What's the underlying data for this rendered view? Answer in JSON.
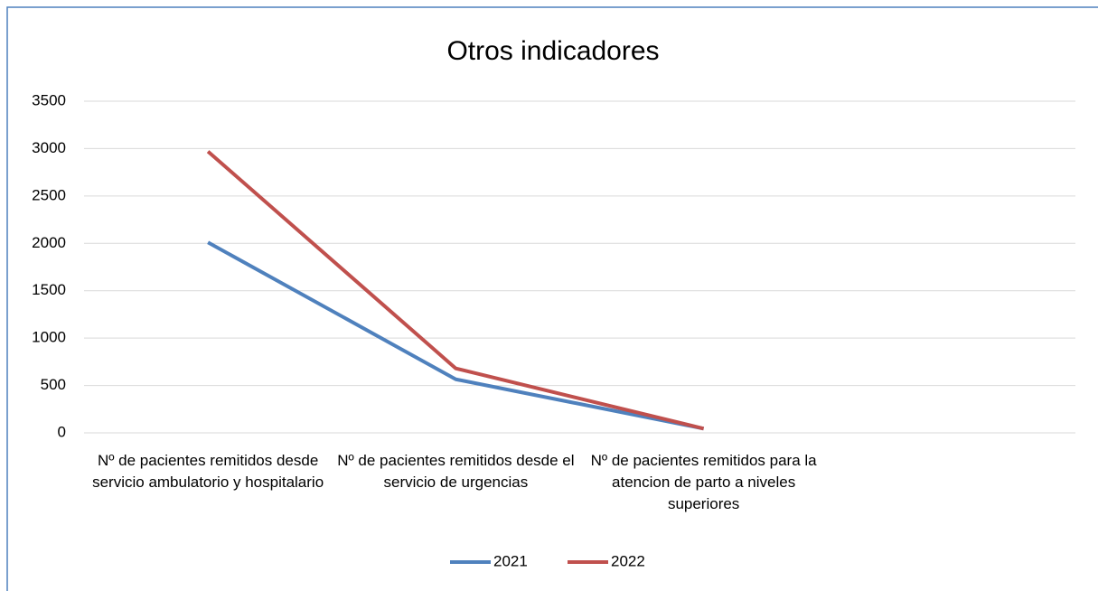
{
  "chart_data": {
    "type": "line",
    "title": "Otros indicadores",
    "categories": [
      "Nº de pacientes remitidos desde servicio ambulatorio y hospitalario",
      "Nº de pacientes remitidos desde el servicio de urgencias",
      "Nº de pacientes remitidos para la atencion de parto a niveles superiores",
      null
    ],
    "series": [
      {
        "name": "2021",
        "color": "#4f81bd",
        "values": [
          2010,
          565,
          45,
          null
        ]
      },
      {
        "name": "2022",
        "color": "#c0504d",
        "values": [
          2970,
          680,
          45,
          null
        ]
      }
    ],
    "ylim": [
      0,
      3500
    ],
    "yticks": [
      0,
      500,
      1000,
      1500,
      2000,
      2500,
      3000,
      3500
    ],
    "grid": true,
    "legend": "bottom"
  }
}
